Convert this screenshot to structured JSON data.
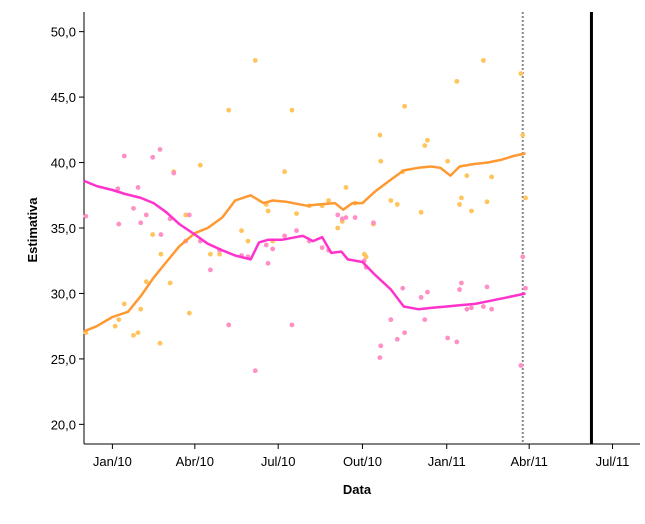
{
  "chart_data": {
    "type": "scatter",
    "title": "",
    "xlabel": "Data",
    "ylabel": "Estimativa",
    "ylim": [
      18.5,
      51.5
    ],
    "xlim": [
      "2009-12-01",
      "2011-07-31"
    ],
    "x_ticks": [
      {
        "date": "2010-01-01",
        "label": "Jan/10"
      },
      {
        "date": "2010-04-01",
        "label": "Abr/10"
      },
      {
        "date": "2010-07-01",
        "label": "Jul/10"
      },
      {
        "date": "2010-10-01",
        "label": "Out/10"
      },
      {
        "date": "2011-01-01",
        "label": "Jan/11"
      },
      {
        "date": "2011-04-01",
        "label": "Abr/11"
      },
      {
        "date": "2011-07-01",
        "label": "Jul/11"
      }
    ],
    "y_ticks": [
      {
        "value": 20,
        "label": "20,0"
      },
      {
        "value": 25,
        "label": "25,0"
      },
      {
        "value": 30,
        "label": "30,0"
      },
      {
        "value": 35,
        "label": "35,0"
      },
      {
        "value": 40,
        "label": "40,0"
      },
      {
        "value": 45,
        "label": "45,0"
      },
      {
        "value": 50,
        "label": "50,0"
      }
    ],
    "grid": false,
    "legend": "none",
    "reference_lines": [
      {
        "date": "2011-03-25",
        "style": "dotted",
        "color": "#888888"
      },
      {
        "date": "2011-06-08",
        "style": "solid",
        "color": "#000000"
      }
    ],
    "series": [
      {
        "color": "#ff9933",
        "point_color": "#ffc45c",
        "points": [
          [
            "2009-12-03",
            27.0
          ],
          [
            "2010-01-04",
            27.5
          ],
          [
            "2010-01-08",
            28.0
          ],
          [
            "2010-01-14",
            29.2
          ],
          [
            "2010-01-24",
            26.8
          ],
          [
            "2010-01-29",
            27.0
          ],
          [
            "2010-02-01",
            28.8
          ],
          [
            "2010-02-07",
            30.9
          ],
          [
            "2010-02-14",
            34.5
          ],
          [
            "2010-02-22",
            26.2
          ],
          [
            "2010-02-23",
            33.0
          ],
          [
            "2010-03-05",
            30.8
          ],
          [
            "2010-03-09",
            39.3
          ],
          [
            "2010-03-22",
            36.0
          ],
          [
            "2010-03-26",
            28.5
          ],
          [
            "2010-04-07",
            39.8
          ],
          [
            "2010-04-18",
            33.0
          ],
          [
            "2010-04-28",
            33.0
          ],
          [
            "2010-05-08",
            44.0
          ],
          [
            "2010-05-22",
            34.8
          ],
          [
            "2010-05-29",
            34.0
          ],
          [
            "2010-06-06",
            47.8
          ],
          [
            "2010-06-18",
            36.8
          ],
          [
            "2010-06-20",
            36.3
          ],
          [
            "2010-06-25",
            34.0
          ],
          [
            "2010-07-08",
            39.3
          ],
          [
            "2010-07-16",
            44.0
          ],
          [
            "2010-07-21",
            36.1
          ],
          [
            "2010-08-04",
            36.7
          ],
          [
            "2010-08-18",
            36.7
          ],
          [
            "2010-08-25",
            37.1
          ],
          [
            "2010-09-04",
            35.0
          ],
          [
            "2010-09-09",
            35.5
          ],
          [
            "2010-09-13",
            38.1
          ],
          [
            "2010-09-23",
            36.9
          ],
          [
            "2010-10-03",
            33.0
          ],
          [
            "2010-10-05",
            32.8
          ],
          [
            "2010-10-13",
            35.3
          ],
          [
            "2010-10-20",
            42.1
          ],
          [
            "2010-10-21",
            40.1
          ],
          [
            "2010-11-01",
            37.1
          ],
          [
            "2010-11-08",
            36.8
          ],
          [
            "2010-11-14",
            39.3
          ],
          [
            "2010-11-16",
            44.3
          ],
          [
            "2010-12-04",
            36.2
          ],
          [
            "2010-12-08",
            41.3
          ],
          [
            "2010-12-11",
            41.7
          ],
          [
            "2011-01-02",
            40.1
          ],
          [
            "2011-01-12",
            46.2
          ],
          [
            "2011-01-15",
            36.8
          ],
          [
            "2011-01-17",
            37.3
          ],
          [
            "2011-01-23",
            39.0
          ],
          [
            "2011-01-28",
            36.3
          ],
          [
            "2011-02-10",
            47.8
          ],
          [
            "2011-02-14",
            37.0
          ],
          [
            "2011-02-19",
            38.9
          ],
          [
            "2011-03-23",
            46.8
          ],
          [
            "2011-03-25",
            42.1
          ],
          [
            "2011-03-28",
            37.3
          ]
        ],
        "trend": [
          [
            "2009-12-01",
            27.1
          ],
          [
            "2009-12-15",
            27.5
          ],
          [
            "2010-01-01",
            28.2
          ],
          [
            "2010-01-18",
            28.6
          ],
          [
            "2010-02-01",
            29.8
          ],
          [
            "2010-02-15",
            31.2
          ],
          [
            "2010-03-01",
            32.4
          ],
          [
            "2010-03-15",
            33.6
          ],
          [
            "2010-04-01",
            34.6
          ],
          [
            "2010-04-15",
            35.0
          ],
          [
            "2010-05-01",
            35.8
          ],
          [
            "2010-05-15",
            37.1
          ],
          [
            "2010-06-01",
            37.5
          ],
          [
            "2010-06-15",
            36.9
          ],
          [
            "2010-06-25",
            37.1
          ],
          [
            "2010-07-10",
            37.0
          ],
          [
            "2010-08-01",
            36.7
          ],
          [
            "2010-08-15",
            36.8
          ],
          [
            "2010-09-01",
            36.9
          ],
          [
            "2010-09-10",
            36.4
          ],
          [
            "2010-09-20",
            36.9
          ],
          [
            "2010-10-01",
            36.9
          ],
          [
            "2010-10-15",
            37.8
          ],
          [
            "2010-11-01",
            38.7
          ],
          [
            "2010-11-15",
            39.4
          ],
          [
            "2010-12-01",
            39.6
          ],
          [
            "2010-12-15",
            39.7
          ],
          [
            "2010-12-25",
            39.6
          ],
          [
            "2011-01-05",
            39.0
          ],
          [
            "2011-01-15",
            39.7
          ],
          [
            "2011-02-01",
            39.9
          ],
          [
            "2011-02-15",
            40.0
          ],
          [
            "2011-03-01",
            40.2
          ],
          [
            "2011-03-15",
            40.5
          ],
          [
            "2011-03-28",
            40.7
          ]
        ]
      },
      {
        "color": "#ff33cc",
        "point_color": "#ff8fc4",
        "points": [
          [
            "2009-12-03",
            35.9
          ],
          [
            "2010-01-07",
            38.0
          ],
          [
            "2010-01-08",
            35.3
          ],
          [
            "2010-01-14",
            40.5
          ],
          [
            "2010-01-24",
            36.5
          ],
          [
            "2010-01-29",
            38.1
          ],
          [
            "2010-02-01",
            35.4
          ],
          [
            "2010-02-07",
            36.0
          ],
          [
            "2010-02-14",
            40.4
          ],
          [
            "2010-02-22",
            41.0
          ],
          [
            "2010-02-23",
            34.5
          ],
          [
            "2010-03-05",
            35.7
          ],
          [
            "2010-03-09",
            39.2
          ],
          [
            "2010-03-22",
            34.0
          ],
          [
            "2010-03-26",
            36.0
          ],
          [
            "2010-04-07",
            34.0
          ],
          [
            "2010-04-18",
            31.8
          ],
          [
            "2010-04-28",
            33.3
          ],
          [
            "2010-05-08",
            27.6
          ],
          [
            "2010-05-22",
            32.9
          ],
          [
            "2010-05-29",
            32.8
          ],
          [
            "2010-06-06",
            24.1
          ],
          [
            "2010-06-18",
            33.7
          ],
          [
            "2010-06-20",
            32.3
          ],
          [
            "2010-06-25",
            33.4
          ],
          [
            "2010-07-08",
            34.4
          ],
          [
            "2010-07-16",
            27.6
          ],
          [
            "2010-07-21",
            34.8
          ],
          [
            "2010-08-04",
            34.0
          ],
          [
            "2010-08-18",
            33.5
          ],
          [
            "2010-08-25",
            33.3
          ],
          [
            "2010-09-04",
            36.0
          ],
          [
            "2010-09-09",
            35.7
          ],
          [
            "2010-09-13",
            35.8
          ],
          [
            "2010-09-23",
            35.8
          ],
          [
            "2010-10-03",
            32.5
          ],
          [
            "2010-10-05",
            32.0
          ],
          [
            "2010-10-13",
            35.4
          ],
          [
            "2010-10-20",
            25.1
          ],
          [
            "2010-10-21",
            26.0
          ],
          [
            "2010-11-01",
            28.0
          ],
          [
            "2010-11-08",
            26.5
          ],
          [
            "2010-11-14",
            30.4
          ],
          [
            "2010-11-16",
            27.0
          ],
          [
            "2010-12-04",
            29.7
          ],
          [
            "2010-12-08",
            28.0
          ],
          [
            "2010-12-11",
            30.1
          ],
          [
            "2011-01-02",
            26.6
          ],
          [
            "2011-01-12",
            26.3
          ],
          [
            "2011-01-15",
            30.3
          ],
          [
            "2011-01-17",
            30.8
          ],
          [
            "2011-01-23",
            28.8
          ],
          [
            "2011-01-28",
            28.9
          ],
          [
            "2011-02-10",
            29.0
          ],
          [
            "2011-02-14",
            30.5
          ],
          [
            "2011-02-19",
            28.8
          ],
          [
            "2011-03-23",
            24.5
          ],
          [
            "2011-03-25",
            32.8
          ],
          [
            "2011-03-28",
            30.4
          ]
        ],
        "trend": [
          [
            "2009-12-01",
            38.6
          ],
          [
            "2009-12-15",
            38.2
          ],
          [
            "2010-01-01",
            37.9
          ],
          [
            "2010-01-15",
            37.6
          ],
          [
            "2010-02-01",
            37.3
          ],
          [
            "2010-02-15",
            36.9
          ],
          [
            "2010-03-01",
            36.2
          ],
          [
            "2010-03-15",
            35.3
          ],
          [
            "2010-04-01",
            34.5
          ],
          [
            "2010-04-15",
            33.8
          ],
          [
            "2010-05-01",
            33.3
          ],
          [
            "2010-05-15",
            32.9
          ],
          [
            "2010-06-01",
            32.6
          ],
          [
            "2010-06-10",
            33.9
          ],
          [
            "2010-06-20",
            34.1
          ],
          [
            "2010-07-05",
            34.1
          ],
          [
            "2010-07-20",
            34.3
          ],
          [
            "2010-07-28",
            34.4
          ],
          [
            "2010-08-08",
            34.0
          ],
          [
            "2010-08-18",
            34.3
          ],
          [
            "2010-08-28",
            33.1
          ],
          [
            "2010-09-08",
            33.2
          ],
          [
            "2010-09-15",
            32.6
          ],
          [
            "2010-10-01",
            32.4
          ],
          [
            "2010-10-15",
            31.4
          ],
          [
            "2010-11-01",
            30.3
          ],
          [
            "2010-11-15",
            29.0
          ],
          [
            "2010-12-01",
            28.8
          ],
          [
            "2010-12-15",
            28.9
          ],
          [
            "2011-01-01",
            29.0
          ],
          [
            "2011-01-15",
            29.1
          ],
          [
            "2011-02-01",
            29.2
          ],
          [
            "2011-02-15",
            29.4
          ],
          [
            "2011-03-01",
            29.6
          ],
          [
            "2011-03-28",
            30.0
          ]
        ]
      }
    ]
  }
}
